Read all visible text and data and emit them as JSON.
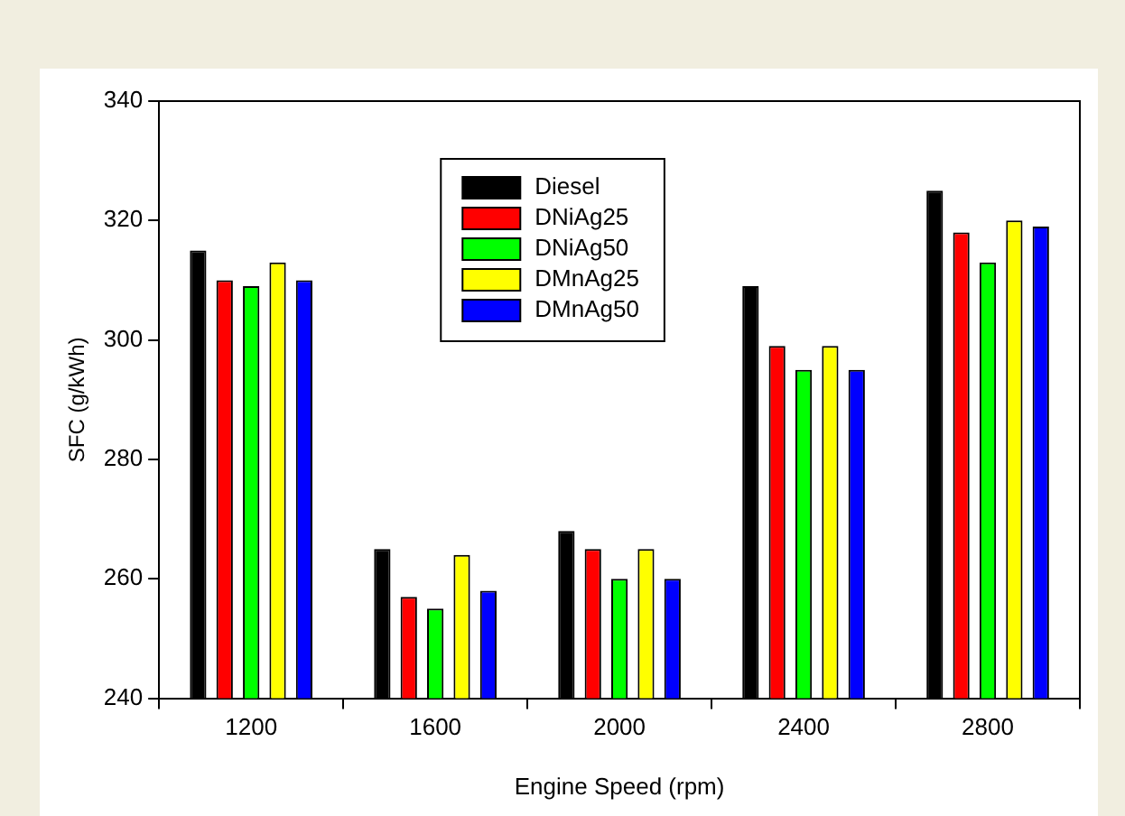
{
  "chart_data": {
    "type": "bar",
    "xlabel": "Engine Speed (rpm)",
    "ylabel": "SFC (g/kWh)",
    "categories": [
      "1200",
      "1600",
      "2000",
      "2400",
      "2800"
    ],
    "series": [
      {
        "name": "Diesel",
        "color": "#000000",
        "values": [
          315,
          265,
          268,
          309,
          325
        ]
      },
      {
        "name": "DNiAg25",
        "color": "#ff0000",
        "values": [
          310,
          257,
          265,
          299,
          318
        ]
      },
      {
        "name": "DNiAg50",
        "color": "#00ff00",
        "values": [
          309,
          255,
          260,
          295,
          313
        ]
      },
      {
        "name": "DMnAg25",
        "color": "#ffff00",
        "values": [
          313,
          264,
          265,
          299,
          320
        ]
      },
      {
        "name": "DMnAg50",
        "color": "#0000ff",
        "values": [
          310,
          258,
          260,
          295,
          319
        ]
      }
    ],
    "ylim": [
      240,
      340
    ],
    "yticks": [
      240,
      260,
      280,
      300,
      320,
      340
    ],
    "legend": "top"
  }
}
